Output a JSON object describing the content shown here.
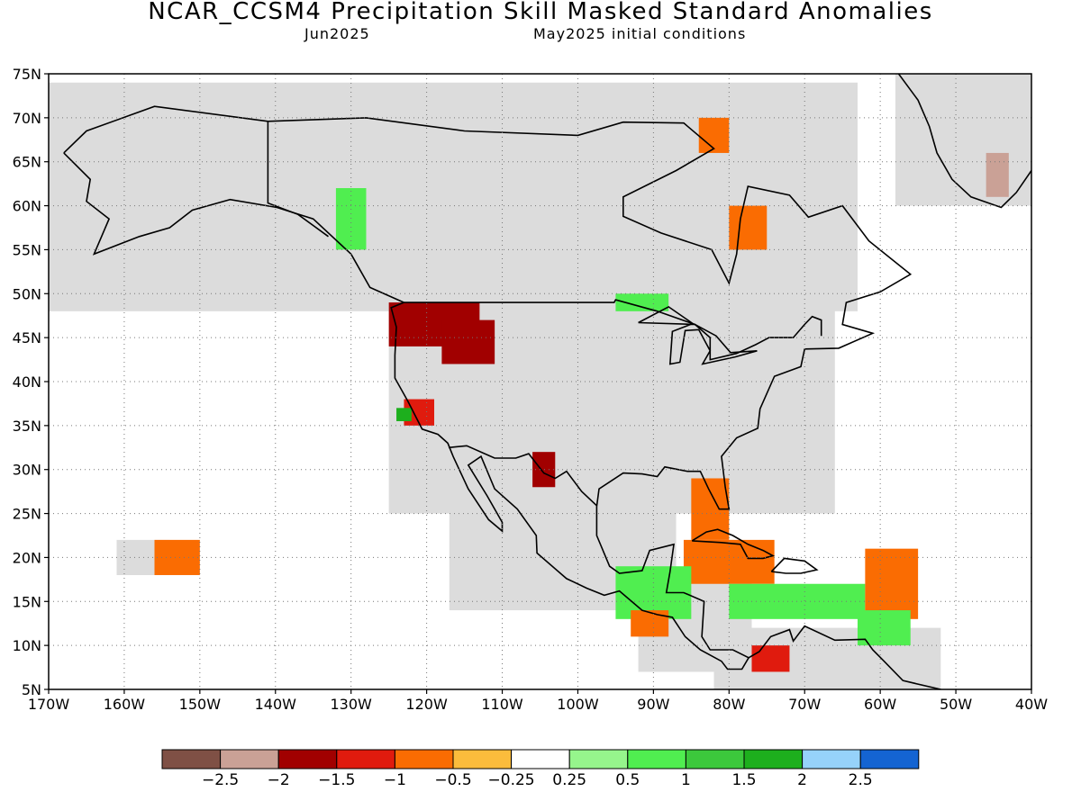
{
  "header": {
    "title": "NCAR_CCSM4 Precipitation Skill Masked Standard Anomalies",
    "target_month": "Jun2025",
    "initial_conditions": "May2025 initial conditions"
  },
  "map": {
    "lon_min": -170,
    "lon_max": -40,
    "lat_min": 5,
    "lat_max": 75,
    "lat_ticks": [
      {
        "value": 75,
        "label": "75N"
      },
      {
        "value": 70,
        "label": "70N"
      },
      {
        "value": 65,
        "label": "65N"
      },
      {
        "value": 60,
        "label": "60N"
      },
      {
        "value": 55,
        "label": "55N"
      },
      {
        "value": 50,
        "label": "50N"
      },
      {
        "value": 45,
        "label": "45N"
      },
      {
        "value": 40,
        "label": "40N"
      },
      {
        "value": 35,
        "label": "35N"
      },
      {
        "value": 30,
        "label": "30N"
      },
      {
        "value": 25,
        "label": "25N"
      },
      {
        "value": 20,
        "label": "20N"
      },
      {
        "value": 15,
        "label": "15N"
      },
      {
        "value": 10,
        "label": "10N"
      },
      {
        "value": 5,
        "label": "5N"
      }
    ],
    "lon_ticks": [
      {
        "value": -170,
        "label": "170W"
      },
      {
        "value": -160,
        "label": "160W"
      },
      {
        "value": -150,
        "label": "150W"
      },
      {
        "value": -140,
        "label": "140W"
      },
      {
        "value": -130,
        "label": "130W"
      },
      {
        "value": -120,
        "label": "120W"
      },
      {
        "value": -110,
        "label": "110W"
      },
      {
        "value": -100,
        "label": "100W"
      },
      {
        "value": -90,
        "label": "90W"
      },
      {
        "value": -80,
        "label": "80W"
      },
      {
        "value": -70,
        "label": "70W"
      },
      {
        "value": -60,
        "label": "60W"
      },
      {
        "value": -50,
        "label": "50W"
      },
      {
        "value": -40,
        "label": "40W"
      }
    ],
    "gridlines": "dotted",
    "mask_color": "#dcdcdc",
    "land_mask_regions": [
      {
        "name": "alaska-canada",
        "lon": [
          -170,
          -63
        ],
        "lat": [
          48,
          74
        ]
      },
      {
        "name": "conus",
        "lon": [
          -125,
          -66
        ],
        "lat": [
          25,
          49
        ]
      },
      {
        "name": "mexico",
        "lon": [
          -117,
          -87
        ],
        "lat": [
          14,
          33
        ]
      },
      {
        "name": "central-america",
        "lon": [
          -92,
          -77
        ],
        "lat": [
          7,
          18
        ]
      },
      {
        "name": "greenland",
        "lon": [
          -58,
          -40
        ],
        "lat": [
          60,
          75
        ]
      },
      {
        "name": "south-america-north",
        "lon": [
          -82,
          -52
        ],
        "lat": [
          5,
          12
        ]
      },
      {
        "name": "hawaii",
        "lon": [
          -161,
          -154
        ],
        "lat": [
          18,
          22
        ]
      }
    ],
    "anomaly_patches": [
      {
        "region": "pacific-northwest",
        "lon": [
          -125,
          -113
        ],
        "lat": [
          44,
          49
        ],
        "value": -1.8
      },
      {
        "region": "northern-rockies",
        "lon": [
          -118,
          -111
        ],
        "lat": [
          42,
          47
        ],
        "value": -1.6
      },
      {
        "region": "northern-california",
        "lon": [
          -123,
          -119
        ],
        "lat": [
          35,
          38
        ],
        "value": -1.2
      },
      {
        "region": "california-coast",
        "lon": [
          -124,
          -122
        ],
        "lat": [
          35.5,
          37
        ],
        "value": 1.8
      },
      {
        "region": "west-texas",
        "lon": [
          -106,
          -103
        ],
        "lat": [
          28,
          32
        ],
        "value": -1.6
      },
      {
        "region": "florida",
        "lon": [
          -85,
          -80
        ],
        "lat": [
          22,
          29
        ],
        "value": -1.0
      },
      {
        "region": "cuba",
        "lon": [
          -86,
          -74
        ],
        "lat": [
          17,
          22
        ],
        "value": -0.7
      },
      {
        "region": "caribbean-sea",
        "lon": [
          -80,
          -62
        ],
        "lat": [
          13,
          17
        ],
        "value": 0.9
      },
      {
        "region": "lesser-antilles",
        "lon": [
          -62,
          -55
        ],
        "lat": [
          13,
          21
        ],
        "value": -0.9
      },
      {
        "region": "venezuela-coast",
        "lon": [
          -63,
          -56
        ],
        "lat": [
          10,
          14
        ],
        "value": 0.8
      },
      {
        "region": "colombia",
        "lon": [
          -77,
          -72
        ],
        "lat": [
          7,
          10
        ],
        "value": -1.1
      },
      {
        "region": "guatemala-honduras",
        "lon": [
          -95,
          -85
        ],
        "lat": [
          13,
          19
        ],
        "value": 0.8
      },
      {
        "region": "el-salvador-pacific",
        "lon": [
          -93,
          -88
        ],
        "lat": [
          11,
          14
        ],
        "value": -0.8
      },
      {
        "region": "hawaii",
        "lon": [
          -156,
          -150
        ],
        "lat": [
          18,
          22
        ],
        "value": -0.9
      },
      {
        "region": "baffin-island",
        "lon": [
          -84,
          -80
        ],
        "lat": [
          66,
          70
        ],
        "value": -0.9
      },
      {
        "region": "labrador",
        "lon": [
          -80,
          -75
        ],
        "lat": [
          55,
          60
        ],
        "value": -0.9
      },
      {
        "region": "southern-alaska",
        "lon": [
          -132,
          -128
        ],
        "lat": [
          55,
          62
        ],
        "value": 0.8
      },
      {
        "region": "hudson-bay-south",
        "lon": [
          -95,
          -88
        ],
        "lat": [
          48,
          50
        ],
        "value": 0.9
      },
      {
        "region": "greenland-south",
        "lon": [
          -46,
          -43
        ],
        "lat": [
          61,
          66
        ],
        "value": -2.2
      }
    ]
  },
  "colorbar": {
    "colors": [
      "#7f5045",
      "#caa196",
      "#a10000",
      "#e01b0e",
      "#fa6c02",
      "#fbbc3c",
      "#ffffff",
      "#96f58c",
      "#50ee50",
      "#3cc83c",
      "#1daf1d",
      "#96d2fa",
      "#1464d2"
    ],
    "labels": [
      "-2.5",
      "-2",
      "-1.5",
      "-1",
      "-0.5",
      "-0.25",
      "0.25",
      "0.5",
      "1",
      "1.5",
      "2",
      "2.5"
    ]
  }
}
